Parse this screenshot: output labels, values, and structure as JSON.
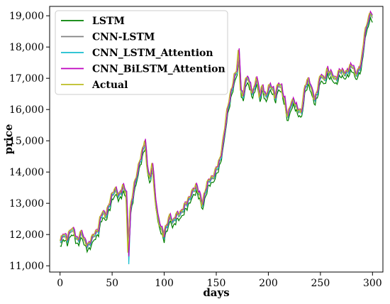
{
  "chart_data": {
    "type": "line",
    "xlabel": "days",
    "ylabel": "price",
    "xlim": [
      -10,
      310
    ],
    "ylim": [
      10800,
      19300
    ],
    "x_ticks": [
      0,
      50,
      100,
      150,
      200,
      250,
      300
    ],
    "x_tick_labels": [
      "0",
      "50",
      "100",
      "150",
      "200",
      "250",
      "300"
    ],
    "y_ticks": [
      11000,
      12000,
      13000,
      14000,
      15000,
      16000,
      17000,
      18000,
      19000
    ],
    "y_tick_labels": [
      "11,000",
      "12,000",
      "13,000",
      "14,000",
      "15,000",
      "16,000",
      "17,000",
      "18,000",
      "19,000"
    ],
    "grid": false,
    "legend_position": "upper-left",
    "series": [
      {
        "name": "LSTM",
        "color": "#008000"
      },
      {
        "name": "CNN-LSTM",
        "color": "#808080"
      },
      {
        "name": "CNN_LSTM_Attention",
        "color": "#17becf"
      },
      {
        "name": "CNN_BiLSTM_Attention",
        "color": "#bf00bf"
      },
      {
        "name": "Actual",
        "color": "#bcbd22"
      }
    ],
    "actual_anchor_points": [
      [
        0,
        11750
      ],
      [
        3,
        12050
      ],
      [
        6,
        11900
      ],
      [
        10,
        12150
      ],
      [
        13,
        12100
      ],
      [
        16,
        11850
      ],
      [
        20,
        12050
      ],
      [
        23,
        11800
      ],
      [
        27,
        11700
      ],
      [
        30,
        11850
      ],
      [
        33,
        12050
      ],
      [
        36,
        12200
      ],
      [
        38,
        12500
      ],
      [
        40,
        12700
      ],
      [
        43,
        12600
      ],
      [
        46,
        12950
      ],
      [
        50,
        13300
      ],
      [
        53,
        13450
      ],
      [
        56,
        13300
      ],
      [
        60,
        13500
      ],
      [
        63,
        13350
      ],
      [
        65,
        11500
      ],
      [
        67,
        12800
      ],
      [
        70,
        13400
      ],
      [
        73,
        13900
      ],
      [
        76,
        14400
      ],
      [
        79,
        14700
      ],
      [
        81,
        15000
      ],
      [
        83,
        14200
      ],
      [
        86,
        13800
      ],
      [
        88,
        14350
      ],
      [
        90,
        13400
      ],
      [
        93,
        12600
      ],
      [
        96,
        12300
      ],
      [
        99,
        11950
      ],
      [
        102,
        12300
      ],
      [
        105,
        12650
      ],
      [
        108,
        12400
      ],
      [
        111,
        12600
      ],
      [
        114,
        12700
      ],
      [
        118,
        12850
      ],
      [
        122,
        13050
      ],
      [
        126,
        13400
      ],
      [
        130,
        13500
      ],
      [
        133,
        13350
      ],
      [
        136,
        13000
      ],
      [
        140,
        13500
      ],
      [
        143,
        13800
      ],
      [
        147,
        13900
      ],
      [
        150,
        14100
      ],
      [
        153,
        14400
      ],
      [
        156,
        15000
      ],
      [
        159,
        15700
      ],
      [
        162,
        16300
      ],
      [
        165,
        16800
      ],
      [
        167,
        17100
      ],
      [
        169,
        17200
      ],
      [
        171,
        17800
      ],
      [
        173,
        16700
      ],
      [
        175,
        16400
      ],
      [
        177,
        16900
      ],
      [
        180,
        17000
      ],
      [
        183,
        16600
      ],
      [
        186,
        16700
      ],
      [
        188,
        17050
      ],
      [
        191,
        16400
      ],
      [
        194,
        16800
      ],
      [
        197,
        16400
      ],
      [
        200,
        16700
      ],
      [
        203,
        16750
      ],
      [
        206,
        16450
      ],
      [
        209,
        16800
      ],
      [
        212,
        16700
      ],
      [
        215,
        16350
      ],
      [
        218,
        15750
      ],
      [
        221,
        16150
      ],
      [
        224,
        16350
      ],
      [
        227,
        16050
      ],
      [
        231,
        15850
      ],
      [
        235,
        16850
      ],
      [
        238,
        16950
      ],
      [
        241,
        16600
      ],
      [
        244,
        16350
      ],
      [
        247,
        16700
      ],
      [
        250,
        17100
      ],
      [
        253,
        16950
      ],
      [
        256,
        17300
      ],
      [
        260,
        17100
      ],
      [
        264,
        17000
      ],
      [
        268,
        17250
      ],
      [
        272,
        17150
      ],
      [
        276,
        17300
      ],
      [
        280,
        17400
      ],
      [
        283,
        17150
      ],
      [
        286,
        17300
      ],
      [
        289,
        17500
      ],
      [
        292,
        18400
      ],
      [
        295,
        18900
      ],
      [
        298,
        19100
      ],
      [
        300,
        18900
      ]
    ]
  }
}
